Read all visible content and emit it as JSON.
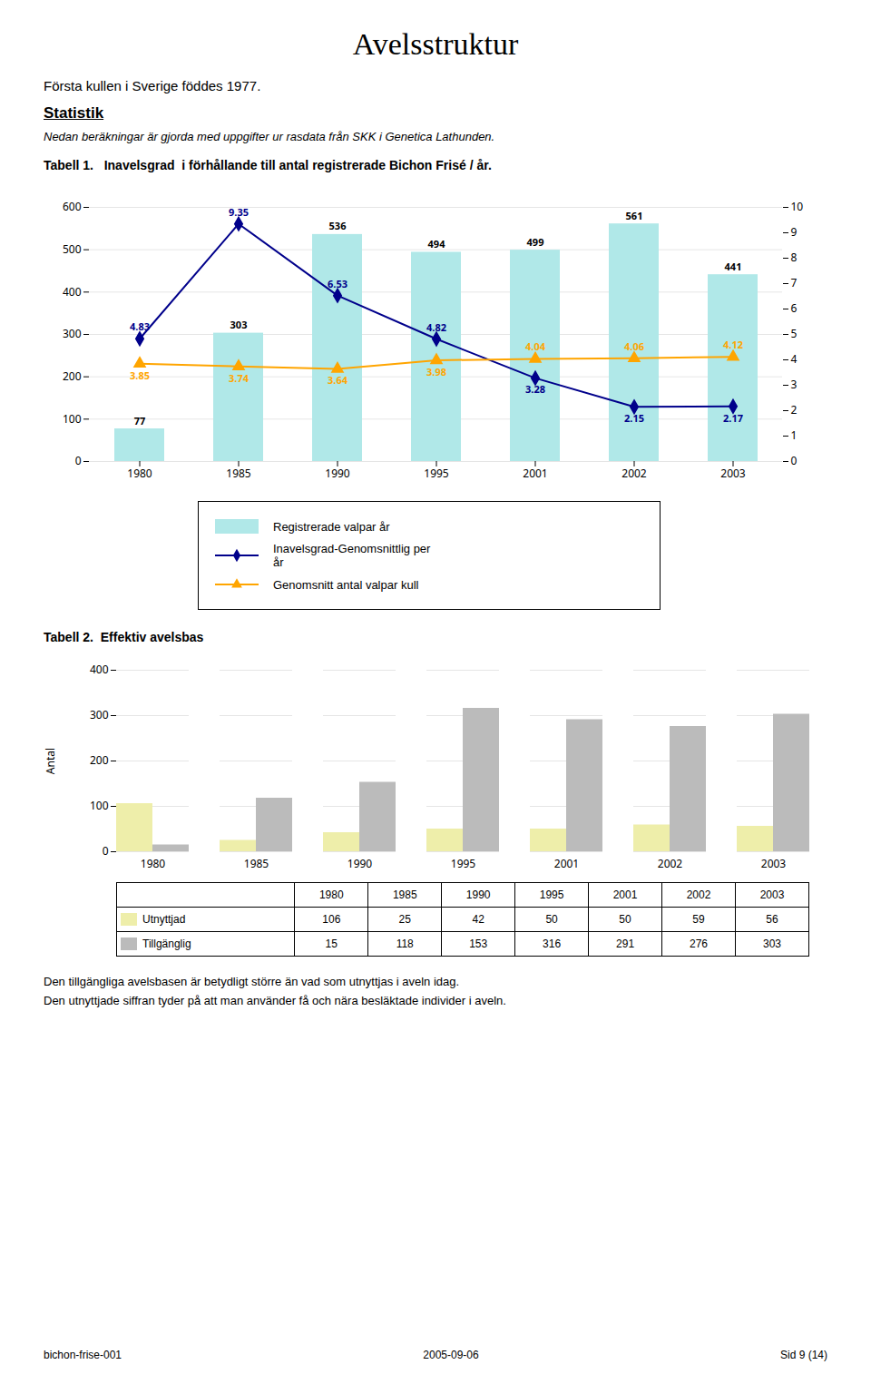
{
  "page": {
    "title": "Avelsstruktur",
    "intro": "Första kullen i Sverige föddes 1977.",
    "section_title": "Statistik",
    "subtitle": "Nedan beräkningar är gjorda med uppgifter ur rasdata från SKK i Genetica Lathunden.",
    "texts": [
      "Den tillgängliga avelsbasen är betydligt större än vad som utnyttjas i aveln idag.",
      "Den utnyttjade siffran tyder på att man använder få och nära besläktade individer i aveln."
    ],
    "footer": [
      "bichon-frise-001",
      "2005-09-06",
      "Sid 9 (14)"
    ]
  },
  "chart_data": [
    {
      "type": "bar",
      "title": "Tabell 1.   Inavelsgrad  i förhållande till antal registrerade Bichon Frisé / år.",
      "categories": [
        "1980",
        "1985",
        "1990",
        "1995",
        "2001",
        "2002",
        "2003"
      ],
      "series": [
        {
          "name": "Registrerade valpar år",
          "type": "bar",
          "color": "#b0e8e8",
          "values": [
            77,
            303,
            536,
            494,
            499,
            561,
            441
          ]
        },
        {
          "name": "Inavelsgrad-Genomsnittlig per\når",
          "type": "line",
          "color": "#00008B",
          "marker": "diamond",
          "axis": "y2",
          "values": [
            4.83,
            9.35,
            6.53,
            4.82,
            3.28,
            2.15,
            2.17
          ]
        },
        {
          "name": "Genomsnitt antal valpar kull",
          "type": "line",
          "color": "#FFA500",
          "marker": "triangle",
          "axis": "y2",
          "values": [
            3.85,
            3.74,
            3.64,
            3.98,
            4.04,
            4.06,
            4.12
          ]
        }
      ],
      "ylim": [
        0,
        600
      ],
      "yticks": [
        0,
        100,
        200,
        300,
        400,
        500,
        600
      ],
      "y2lim": [
        0,
        10
      ],
      "y2ticks": [
        0,
        1,
        2,
        3,
        4,
        5,
        6,
        7,
        8,
        9,
        10
      ],
      "grid": true,
      "data_labels": true,
      "legend": "bottom"
    },
    {
      "type": "bar",
      "title": "Tabell 2.  Effektiv avelsbas",
      "categories": [
        "1980",
        "1985",
        "1990",
        "1995",
        "2001",
        "2002",
        "2003"
      ],
      "series": [
        {
          "name": "Utnyttjad",
          "color": "#EEEEAA",
          "values": [
            106,
            25,
            42,
            50,
            50,
            59,
            56
          ]
        },
        {
          "name": "Tillgänglig",
          "color": "#BBBBBB",
          "values": [
            15,
            118,
            153,
            316,
            291,
            276,
            303
          ]
        }
      ],
      "ylabel": "Antal",
      "ylim": [
        0,
        400
      ],
      "yticks": [
        0,
        100,
        200,
        300,
        400
      ],
      "grid": true
    }
  ]
}
